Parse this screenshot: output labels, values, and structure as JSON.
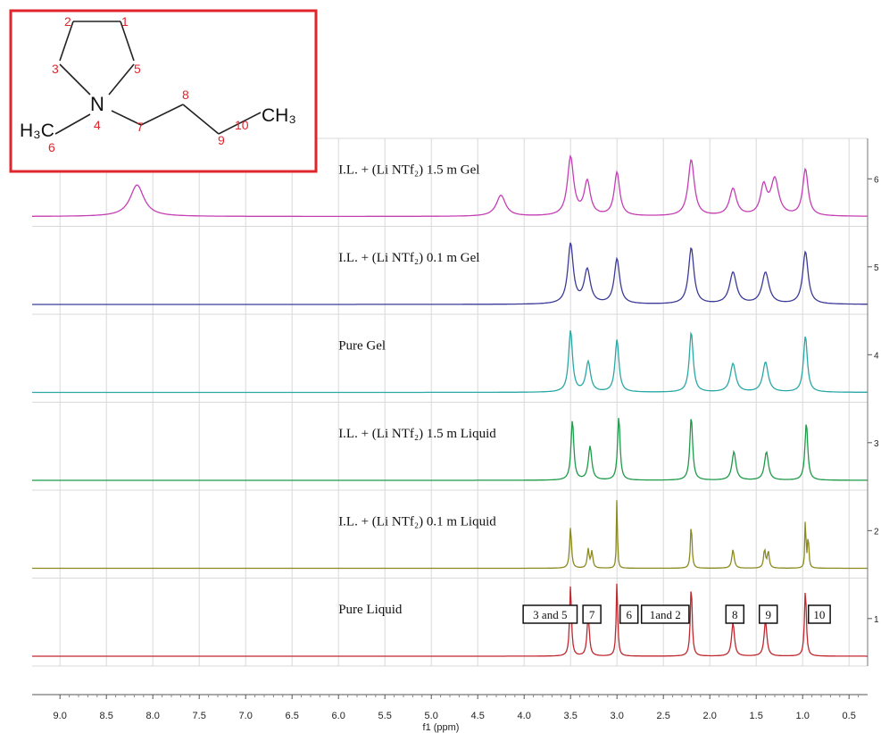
{
  "chart_data": {
    "type": "line",
    "xlabel": "f1 (ppm)",
    "xlim": [
      9.3,
      0.3
    ],
    "x_reversed": true,
    "x_ticks": [
      "9.0",
      "8.5",
      "8.0",
      "7.5",
      "7.0",
      "6.5",
      "6.0",
      "5.5",
      "5.0",
      "4.5",
      "4.0",
      "3.5",
      "3.0",
      "2.5",
      "2.0",
      "1.5",
      "1.0",
      "0.5"
    ],
    "right_ticks": [
      "1",
      "2",
      "3",
      "4",
      "5",
      "6"
    ],
    "series": [
      {
        "name": "Pure Liquid",
        "color": "#c0282f",
        "index": 1,
        "peaks": [
          [
            3.5,
            0.95,
            0.012
          ],
          [
            3.31,
            0.55,
            0.015
          ],
          [
            3.0,
            1.0,
            0.01
          ],
          [
            2.2,
            0.95,
            0.012
          ],
          [
            1.75,
            0.45,
            0.018
          ],
          [
            1.4,
            0.47,
            0.018
          ],
          [
            0.97,
            0.9,
            0.012
          ]
        ]
      },
      {
        "name": "I.L. + (Li NTf₂) 0.1 m Liquid",
        "color": "#8c8a1e",
        "index": 2,
        "peaks": [
          [
            3.5,
            0.55,
            0.012
          ],
          [
            3.31,
            0.25,
            0.012
          ],
          [
            3.27,
            0.22,
            0.012
          ],
          [
            3.0,
            1.0,
            0.006
          ],
          [
            2.2,
            0.6,
            0.01
          ],
          [
            1.75,
            0.25,
            0.015
          ],
          [
            1.41,
            0.25,
            0.012
          ],
          [
            1.37,
            0.22,
            0.012
          ],
          [
            0.97,
            0.75,
            0.006
          ],
          [
            0.94,
            0.45,
            0.008
          ]
        ]
      },
      {
        "name": "I.L. + (Li NTf₂) 1.5 m Liquid",
        "color": "#1f9a4a",
        "index": 3,
        "peaks": [
          [
            3.48,
            0.8,
            0.018
          ],
          [
            3.29,
            0.45,
            0.022
          ],
          [
            2.98,
            0.85,
            0.016
          ],
          [
            2.2,
            0.85,
            0.018
          ],
          [
            1.74,
            0.38,
            0.025
          ],
          [
            1.39,
            0.38,
            0.025
          ],
          [
            0.96,
            0.77,
            0.018
          ]
        ]
      },
      {
        "name": "Pure Gel",
        "color": "#2aa8a6",
        "index": 4,
        "peaks": [
          [
            3.5,
            0.82,
            0.025
          ],
          [
            3.31,
            0.4,
            0.03
          ],
          [
            3.0,
            0.7,
            0.025
          ],
          [
            2.2,
            0.8,
            0.025
          ],
          [
            1.75,
            0.38,
            0.035
          ],
          [
            1.4,
            0.4,
            0.035
          ],
          [
            0.97,
            0.75,
            0.025
          ]
        ]
      },
      {
        "name": "I.L. + (Li NTf₂) 0.1 m Gel",
        "color": "#3b3a98",
        "index": 5,
        "peaks": [
          [
            3.5,
            0.8,
            0.035
          ],
          [
            3.32,
            0.45,
            0.04
          ],
          [
            3.0,
            0.6,
            0.035
          ],
          [
            2.2,
            0.75,
            0.035
          ],
          [
            1.75,
            0.42,
            0.045
          ],
          [
            1.4,
            0.42,
            0.045
          ],
          [
            0.97,
            0.7,
            0.035
          ]
        ]
      },
      {
        "name": "I.L. + (Li NTf₂) 1.5 m Gel",
        "color": "#c43fb4",
        "index": 6,
        "peaks": [
          [
            8.17,
            0.42,
            0.09
          ],
          [
            4.25,
            0.28,
            0.06
          ],
          [
            3.5,
            0.78,
            0.04
          ],
          [
            3.32,
            0.45,
            0.04
          ],
          [
            3.0,
            0.58,
            0.035
          ],
          [
            2.2,
            0.75,
            0.04
          ],
          [
            1.75,
            0.36,
            0.045
          ],
          [
            1.42,
            0.38,
            0.04
          ],
          [
            1.3,
            0.48,
            0.05
          ],
          [
            0.97,
            0.62,
            0.035
          ]
        ]
      }
    ],
    "peak_labels": [
      {
        "text": "3 and 5",
        "ppm": 3.72
      },
      {
        "text": "7",
        "ppm": 3.27
      },
      {
        "text": "6",
        "ppm": 2.87
      },
      {
        "text": "1and 2",
        "ppm": 2.48
      },
      {
        "text": "8",
        "ppm": 1.73
      },
      {
        "text": "9",
        "ppm": 1.37
      },
      {
        "text": "10",
        "ppm": 0.82
      }
    ],
    "grid": true
  },
  "molecule": {
    "atom_N": "N",
    "atom_CH3_left": "H₃C",
    "atom_CH3_right": "CH₃",
    "numbers": [
      "1",
      "2",
      "3",
      "4",
      "5",
      "6",
      "7",
      "8",
      "9",
      "10"
    ]
  }
}
